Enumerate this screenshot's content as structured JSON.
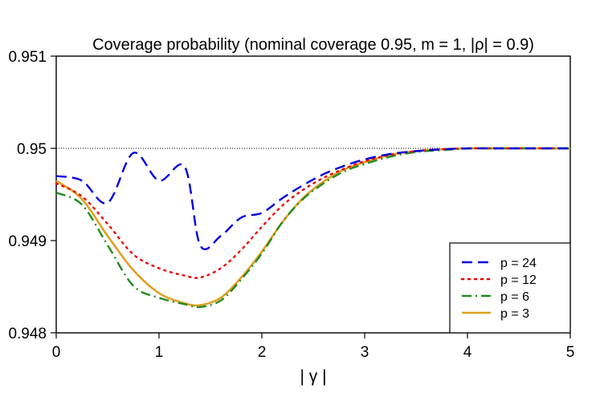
{
  "chart_data": {
    "type": "line",
    "title": "Coverage probability (nominal coverage 0.95, m = 1, |ρ| = 0.9)",
    "xlabel": "| γ |",
    "ylabel": "",
    "xlim": [
      0,
      5
    ],
    "ylim": [
      0.948,
      0.951
    ],
    "xticks": [
      0,
      1,
      2,
      3,
      4,
      5
    ],
    "xtick_labels": [
      "0",
      "1",
      "2",
      "3",
      "4",
      "5"
    ],
    "yticks": [
      0.948,
      0.949,
      0.95,
      0.951
    ],
    "ytick_labels": [
      "0.948",
      "0.949",
      "0.95",
      "0.951"
    ],
    "reference_line": {
      "y": 0.95,
      "style": "dotted"
    },
    "legend_position": "bottom-right",
    "grid": false,
    "series": [
      {
        "name": "p = 24",
        "color": "#0000dd",
        "dash": "dashed",
        "x": [
          0,
          0.25,
          0.5,
          0.75,
          1.0,
          1.25,
          1.4,
          1.6,
          1.8,
          2.0,
          2.2,
          2.4,
          2.6,
          2.8,
          3.0,
          3.25,
          3.5,
          3.75,
          4.0,
          4.25,
          4.5,
          5.0
        ],
        "y": [
          0.9497,
          0.94965,
          0.94941,
          0.94995,
          0.94965,
          0.9498,
          0.94895,
          0.94905,
          0.94925,
          0.9493,
          0.94946,
          0.9496,
          0.94972,
          0.94981,
          0.94988,
          0.94994,
          0.94997,
          0.94999,
          0.95,
          0.95,
          0.95,
          0.95
        ]
      },
      {
        "name": "p = 12",
        "color": "#ee0000",
        "dash": "dotted",
        "x": [
          0,
          0.25,
          0.5,
          0.75,
          1.0,
          1.25,
          1.4,
          1.6,
          1.8,
          2.0,
          2.2,
          2.4,
          2.6,
          2.8,
          3.0,
          3.25,
          3.5,
          3.75,
          4.0,
          4.25,
          4.5,
          5.0
        ],
        "y": [
          0.94962,
          0.94948,
          0.94918,
          0.94885,
          0.9487,
          0.94862,
          0.9486,
          0.9487,
          0.9489,
          0.94915,
          0.94938,
          0.94955,
          0.94968,
          0.94978,
          0.94986,
          0.94993,
          0.94997,
          0.94999,
          0.95,
          0.95,
          0.95,
          0.95
        ]
      },
      {
        "name": "p = 6",
        "color": "#228b22",
        "dash": "dashdot",
        "x": [
          0,
          0.25,
          0.5,
          0.75,
          1.0,
          1.25,
          1.4,
          1.6,
          1.8,
          2.0,
          2.2,
          2.4,
          2.6,
          2.8,
          3.0,
          3.25,
          3.5,
          3.75,
          4.0,
          4.25,
          4.5,
          5.0
        ],
        "y": [
          0.94952,
          0.94939,
          0.94895,
          0.94851,
          0.94838,
          0.94831,
          0.94828,
          0.94835,
          0.94858,
          0.94886,
          0.9492,
          0.94945,
          0.94962,
          0.94975,
          0.94983,
          0.94991,
          0.94996,
          0.94998,
          0.949997,
          0.95,
          0.95,
          0.95
        ]
      },
      {
        "name": "p = 3",
        "color": "#e0a020",
        "dash": "solid",
        "x": [
          0,
          0.25,
          0.5,
          0.75,
          1.0,
          1.25,
          1.4,
          1.6,
          1.8,
          2.0,
          2.2,
          2.4,
          2.6,
          2.8,
          3.0,
          3.25,
          3.5,
          3.75,
          4.0,
          4.25,
          4.5,
          5.0
        ],
        "y": [
          0.94965,
          0.94945,
          0.94905,
          0.94868,
          0.94843,
          0.94832,
          0.9483,
          0.94838,
          0.9486,
          0.94888,
          0.9492,
          0.94946,
          0.94964,
          0.94977,
          0.94985,
          0.94993,
          0.94997,
          0.94999,
          0.95,
          0.95,
          0.95,
          0.95
        ]
      }
    ]
  }
}
